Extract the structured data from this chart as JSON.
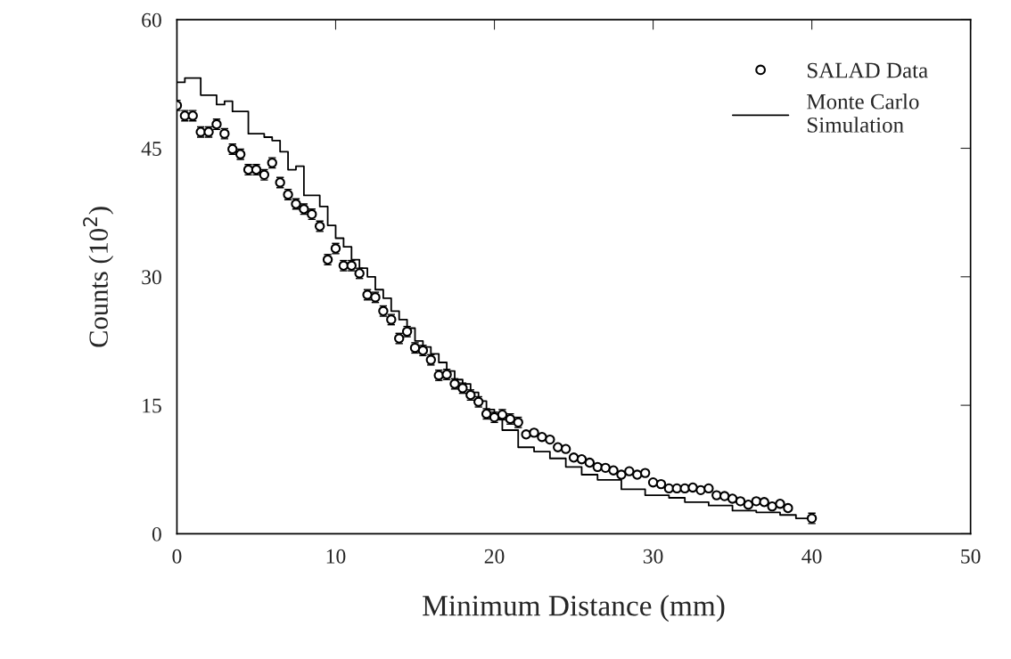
{
  "chart_data": {
    "type": "scatter",
    "xlabel": "Minimum Distance (mm)",
    "ylabel": "Counts (10$^{2}$)",
    "xlim": [
      0,
      50
    ],
    "xticks": [
      0,
      10,
      20,
      30,
      40,
      50
    ],
    "ylim": [
      0,
      60
    ],
    "yticks": [
      0,
      15,
      30,
      45,
      60
    ],
    "grid": false,
    "legend": "top right",
    "series": [
      {
        "name": "SALAD Data",
        "marker": "circle",
        "color": "#000000",
        "x": [
          0,
          0.5,
          1,
          1.5,
          2,
          2.5,
          3,
          3.5,
          4,
          4.5,
          5,
          5.5,
          6,
          6.5,
          7,
          7.5,
          8,
          8.5,
          9,
          9.5,
          10,
          10.5,
          11,
          11.5,
          12,
          12.5,
          13,
          13.5,
          14,
          14.5,
          15,
          15.5,
          16,
          16.5,
          17,
          17.5,
          18,
          18.5,
          19,
          19.5,
          20,
          20.5,
          21,
          21.5,
          22,
          22.5,
          23,
          23.5,
          24,
          24.5,
          25,
          25.5,
          26,
          26.5,
          27,
          27.5,
          28,
          28.5,
          29,
          29.5,
          30,
          30.5,
          31,
          31.5,
          32,
          32.5,
          33,
          33.5,
          34,
          34.5,
          35,
          35.5,
          36,
          36.5,
          37,
          37.5,
          38,
          38.5,
          40
        ],
        "values": [
          50.0,
          48.8,
          48.8,
          46.9,
          46.9,
          47.8,
          46.7,
          44.9,
          44.3,
          42.5,
          42.5,
          41.9,
          43.3,
          41.0,
          39.6,
          38.5,
          37.9,
          37.3,
          35.9,
          32.0,
          33.3,
          31.3,
          31.3,
          30.4,
          27.9,
          27.6,
          26.0,
          25.0,
          22.8,
          23.6,
          21.7,
          21.4,
          20.3,
          18.5,
          18.6,
          17.5,
          17.0,
          16.2,
          15.4,
          14.0,
          13.6,
          13.9,
          13.4,
          13.0,
          11.6,
          11.8,
          11.3,
          11.0,
          10.1,
          9.9,
          8.9,
          8.7,
          8.3,
          7.8,
          7.7,
          7.4,
          6.9,
          7.3,
          6.9,
          7.1,
          6.0,
          5.8,
          5.3,
          5.3,
          5.3,
          5.4,
          5.1,
          5.3,
          4.5,
          4.4,
          4.1,
          3.8,
          3.4,
          3.8,
          3.7,
          3.2,
          3.5,
          3.0,
          1.8
        ],
        "errors": [
          0.6,
          0.6,
          0.6,
          0.6,
          0.6,
          0.6,
          0.6,
          0.6,
          0.6,
          0.6,
          0.6,
          0.6,
          0.6,
          0.6,
          0.6,
          0.6,
          0.6,
          0.6,
          0.6,
          0.6,
          0.6,
          0.6,
          0.6,
          0.6,
          0.6,
          0.6,
          0.6,
          0.6,
          0.6,
          0.6,
          0.6,
          0.6,
          0.6,
          0.6,
          0.6,
          0.6,
          0.6,
          0.6,
          0.6,
          0.6,
          0.6,
          0.6,
          0.6,
          0.6,
          null,
          null,
          null,
          null,
          null,
          null,
          null,
          null,
          null,
          null,
          null,
          null,
          null,
          null,
          null,
          null,
          null,
          null,
          null,
          null,
          null,
          null,
          null,
          null,
          null,
          null,
          null,
          null,
          null,
          null,
          null,
          null,
          null,
          null,
          0.6
        ]
      },
      {
        "name": "Monte Carlo\nSimulation",
        "type": "step",
        "color": "#000000",
        "x": [
          0,
          0.5,
          1,
          1.5,
          2,
          2.5,
          3,
          3.5,
          4,
          4.5,
          5,
          5.5,
          6,
          6.5,
          7,
          7.5,
          8,
          8.5,
          9,
          9.5,
          10,
          10.5,
          11,
          11.5,
          12,
          12.5,
          13,
          13.5,
          14,
          14.5,
          15,
          15.5,
          16,
          16.5,
          17,
          17.5,
          18,
          18.5,
          19,
          19.5,
          20,
          20.5,
          21,
          21.5,
          22,
          22.5,
          23,
          23.5,
          24,
          24.5,
          25,
          25.5,
          26,
          26.5,
          27,
          27.5,
          28,
          28.5,
          29,
          29.5,
          30,
          30.5,
          31,
          31.5,
          32,
          32.5,
          33,
          33.5,
          34,
          34.5,
          35,
          35.5,
          36,
          36.5,
          37,
          37.5,
          38,
          38.5,
          39,
          39.5,
          40
        ],
        "values": [
          52.7,
          53.2,
          53.2,
          51.2,
          51.2,
          50.1,
          50.5,
          49.3,
          49.3,
          46.7,
          46.7,
          46.3,
          45.9,
          44.6,
          42.5,
          42.9,
          39.5,
          39.5,
          38.2,
          36.0,
          34.5,
          33.5,
          32.0,
          31.0,
          30.0,
          28.5,
          27.5,
          26.0,
          25.0,
          24.0,
          22.5,
          21.8,
          21.0,
          20.0,
          19.0,
          18.0,
          17.5,
          16.5,
          15.5,
          14.5,
          13.4,
          12.1,
          12.1,
          10.1,
          10.1,
          9.6,
          9.6,
          8.8,
          8.8,
          7.8,
          7.8,
          6.9,
          6.9,
          6.3,
          6.3,
          6.3,
          5.2,
          5.2,
          5.2,
          4.5,
          4.5,
          4.5,
          4.2,
          4.2,
          3.7,
          3.7,
          3.7,
          3.3,
          3.3,
          3.3,
          2.7,
          2.7,
          2.7,
          2.5,
          2.5,
          2.5,
          2.2,
          2.2,
          1.8,
          1.8,
          1.8
        ]
      }
    ]
  }
}
